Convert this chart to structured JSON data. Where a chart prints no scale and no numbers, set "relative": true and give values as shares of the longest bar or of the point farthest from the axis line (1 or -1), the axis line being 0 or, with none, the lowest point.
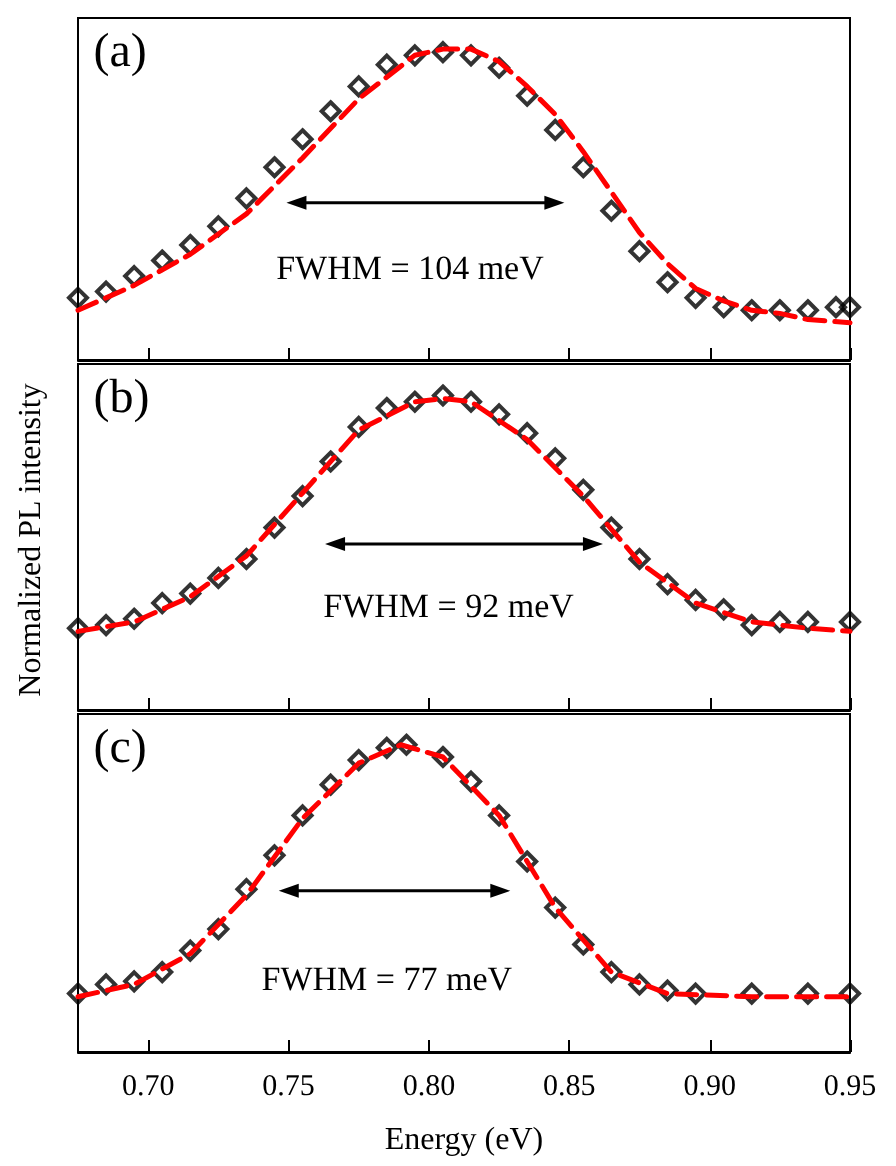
{
  "chart_data": [
    {
      "type": "scatter",
      "relative": true,
      "annotations": [
        "(a)",
        "FWHM = 104 meV"
      ],
      "xlim": [
        0.675,
        0.95
      ],
      "xticks": [
        {
          "value": 0.7,
          "label": null
        },
        {
          "value": 0.75,
          "label": null
        },
        {
          "value": 0.8,
          "label": null
        },
        {
          "value": 0.85,
          "label": null
        },
        {
          "value": 0.9,
          "label": null
        },
        {
          "value": 0.95,
          "label": null
        }
      ],
      "tick_labels": false,
      "grid": false,
      "series": [
        {
          "color": "#000000",
          "marker": "diamond",
          "x": [
            0.675,
            0.685,
            0.695,
            0.705,
            0.715,
            0.725,
            0.735,
            0.745,
            0.755,
            0.765,
            0.775,
            0.785,
            0.795,
            0.805,
            0.815,
            0.825,
            0.835,
            0.845,
            0.855,
            0.865,
            0.875,
            0.885,
            0.895,
            0.905,
            0.915,
            0.925,
            0.935,
            0.945,
            0.95
          ],
          "values": [
            0.2,
            0.22,
            0.27,
            0.32,
            0.37,
            0.43,
            0.52,
            0.62,
            0.71,
            0.8,
            0.88,
            0.95,
            0.98,
            0.99,
            0.98,
            0.94,
            0.85,
            0.74,
            0.62,
            0.48,
            0.35,
            0.25,
            0.2,
            0.17,
            0.16,
            0.16,
            0.16,
            0.17,
            0.17
          ]
        },
        {
          "type": "line",
          "color": "#ff0000",
          "marker": "none",
          "line_style": "dashed",
          "x": [
            0.675,
            0.695,
            0.715,
            0.735,
            0.755,
            0.775,
            0.795,
            0.805,
            0.815,
            0.825,
            0.835,
            0.845,
            0.855,
            0.865,
            0.875,
            0.885,
            0.895,
            0.905,
            0.915,
            0.925,
            0.935,
            0.95
          ],
          "values": [
            0.16,
            0.24,
            0.34,
            0.47,
            0.65,
            0.84,
            0.98,
            1.0,
            1.0,
            0.96,
            0.88,
            0.79,
            0.67,
            0.54,
            0.41,
            0.31,
            0.23,
            0.19,
            0.16,
            0.15,
            0.13,
            0.12
          ]
        }
      ]
    },
    {
      "type": "scatter",
      "relative": true,
      "ylabel": "Normalized PL intensity",
      "annotations": [
        "(b)",
        "FWHM = 92 meV"
      ],
      "xlim": [
        0.675,
        0.95
      ],
      "xticks": [
        {
          "value": 0.7,
          "label": null
        },
        {
          "value": 0.75,
          "label": null
        },
        {
          "value": 0.8,
          "label": null
        },
        {
          "value": 0.85,
          "label": null
        },
        {
          "value": 0.9,
          "label": null
        },
        {
          "value": 0.95,
          "label": null
        }
      ],
      "tick_labels": false,
      "grid": false,
      "series": [
        {
          "color": "#000000",
          "marker": "diamond",
          "x": [
            0.675,
            0.685,
            0.695,
            0.705,
            0.715,
            0.725,
            0.735,
            0.745,
            0.755,
            0.765,
            0.775,
            0.785,
            0.795,
            0.805,
            0.815,
            0.825,
            0.835,
            0.845,
            0.855,
            0.865,
            0.875,
            0.885,
            0.895,
            0.905,
            0.915,
            0.925,
            0.935,
            0.95
          ],
          "values": [
            0.26,
            0.27,
            0.29,
            0.34,
            0.37,
            0.42,
            0.48,
            0.58,
            0.68,
            0.79,
            0.9,
            0.96,
            0.98,
            1.0,
            0.98,
            0.94,
            0.88,
            0.8,
            0.7,
            0.58,
            0.48,
            0.4,
            0.35,
            0.32,
            0.27,
            0.28,
            0.28,
            0.28
          ]
        },
        {
          "type": "line",
          "color": "#ff0000",
          "marker": "none",
          "line_style": "dashed",
          "x": [
            0.675,
            0.695,
            0.715,
            0.735,
            0.755,
            0.775,
            0.795,
            0.805,
            0.815,
            0.835,
            0.855,
            0.875,
            0.895,
            0.915,
            0.935,
            0.95
          ],
          "values": [
            0.25,
            0.28,
            0.36,
            0.49,
            0.69,
            0.89,
            0.98,
            0.99,
            0.98,
            0.86,
            0.68,
            0.47,
            0.34,
            0.28,
            0.26,
            0.25
          ]
        }
      ]
    },
    {
      "type": "scatter",
      "relative": true,
      "xlabel": "Energy (eV)",
      "annotations": [
        "(c)",
        "FWHM = 77 meV"
      ],
      "xlim": [
        0.675,
        0.95
      ],
      "xticks": [
        {
          "value": 0.7,
          "label": "0.70"
        },
        {
          "value": 0.75,
          "label": "0.75"
        },
        {
          "value": 0.8,
          "label": "0.80"
        },
        {
          "value": 0.85,
          "label": "0.85"
        },
        {
          "value": 0.9,
          "label": "0.90"
        },
        {
          "value": 0.95,
          "label": "0.95"
        }
      ],
      "tick_labels": "x",
      "grid": false,
      "series": [
        {
          "color": "#000000",
          "marker": "diamond",
          "x": [
            0.675,
            0.685,
            0.695,
            0.705,
            0.715,
            0.725,
            0.735,
            0.745,
            0.755,
            0.765,
            0.775,
            0.785,
            0.792,
            0.805,
            0.815,
            0.825,
            0.835,
            0.845,
            0.855,
            0.865,
            0.875,
            0.885,
            0.895,
            0.915,
            0.935,
            0.95
          ],
          "values": [
            0.19,
            0.22,
            0.23,
            0.26,
            0.33,
            0.4,
            0.53,
            0.64,
            0.77,
            0.87,
            0.95,
            0.99,
            1.0,
            0.96,
            0.88,
            0.77,
            0.62,
            0.47,
            0.35,
            0.26,
            0.22,
            0.2,
            0.19,
            0.19,
            0.19,
            0.19
          ]
        },
        {
          "type": "line",
          "color": "#ff0000",
          "marker": "none",
          "line_style": "dashed",
          "x": [
            0.675,
            0.695,
            0.715,
            0.735,
            0.755,
            0.775,
            0.79,
            0.805,
            0.825,
            0.845,
            0.865,
            0.885,
            0.915,
            0.95
          ],
          "values": [
            0.18,
            0.22,
            0.32,
            0.51,
            0.76,
            0.94,
            1.0,
            0.96,
            0.77,
            0.47,
            0.26,
            0.19,
            0.18,
            0.18
          ]
        }
      ]
    }
  ]
}
